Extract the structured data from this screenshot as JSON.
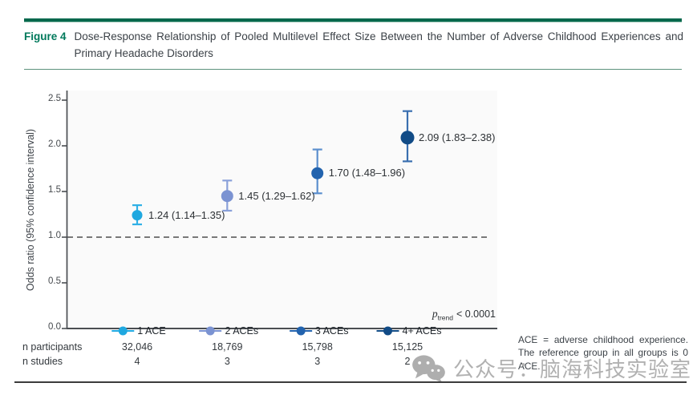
{
  "figure": {
    "label": "Figure 4",
    "title": "Dose-Response Relationship of Pooled Multilevel Effect Size Between the Number of Adverse Childhood Experiences and Primary Headache Disorders"
  },
  "chart_data": {
    "type": "scatter",
    "ylabel": "Odds ratio (95% confidence interval)",
    "ylim": [
      0.0,
      2.5
    ],
    "yticks": [
      "0.0",
      "0.5",
      "1.0",
      "1.5",
      "2.0",
      "2.5"
    ],
    "reference_line": 1.0,
    "grid": false,
    "legend_position": "bottom",
    "categories": [
      "1 ACE",
      "2 ACEs",
      "3 ACEs",
      "4+ ACEs"
    ],
    "points": [
      {
        "label": "1 ACE",
        "value": 1.24,
        "ci_low": 1.14,
        "ci_high": 1.35,
        "display": "1.24 (1.14–1.35)",
        "color": "#1fa8e0",
        "bar_color": "#2fb0e6",
        "n_participants": "32,046",
        "n_studies": "4"
      },
      {
        "label": "2 ACEs",
        "value": 1.45,
        "ci_low": 1.29,
        "ci_high": 1.62,
        "display": "1.45 (1.29–1.62)",
        "color": "#7b93d2",
        "bar_color": "#8aa1da",
        "n_participants": "18,769",
        "n_studies": "3"
      },
      {
        "label": "3 ACEs",
        "value": 1.7,
        "ci_low": 1.48,
        "ci_high": 1.96,
        "display": "1.70 (1.48–1.96)",
        "color": "#2263ae",
        "bar_color": "#5b8fce",
        "n_participants": "15,798",
        "n_studies": "3"
      },
      {
        "label": "4+ ACEs",
        "value": 2.09,
        "ci_low": 1.83,
        "ci_high": 2.38,
        "display": "2.09 (1.83–2.38)",
        "color": "#114b86",
        "bar_color": "#3a6fb0",
        "n_participants": "15,125",
        "n_studies": "2"
      }
    ],
    "p_trend": {
      "p": "p",
      "sub": "trend",
      "value": "< 0.0001"
    },
    "rows": {
      "participants_label": "n participants",
      "studies_label": "n studies"
    }
  },
  "note": "ACE = adverse childhood experience. The reference group in all groups is 0 ACE.",
  "watermark": {
    "icon": "wechat-icon",
    "text": "公众号：脑海科技实验室"
  },
  "colors": {
    "header_green": "#02684c",
    "figure_label_green": "#00795b",
    "axis_gray": "#4a4e52",
    "dashed_line": "#4d4d4d",
    "watermark_gray": "#b1b1b1"
  }
}
